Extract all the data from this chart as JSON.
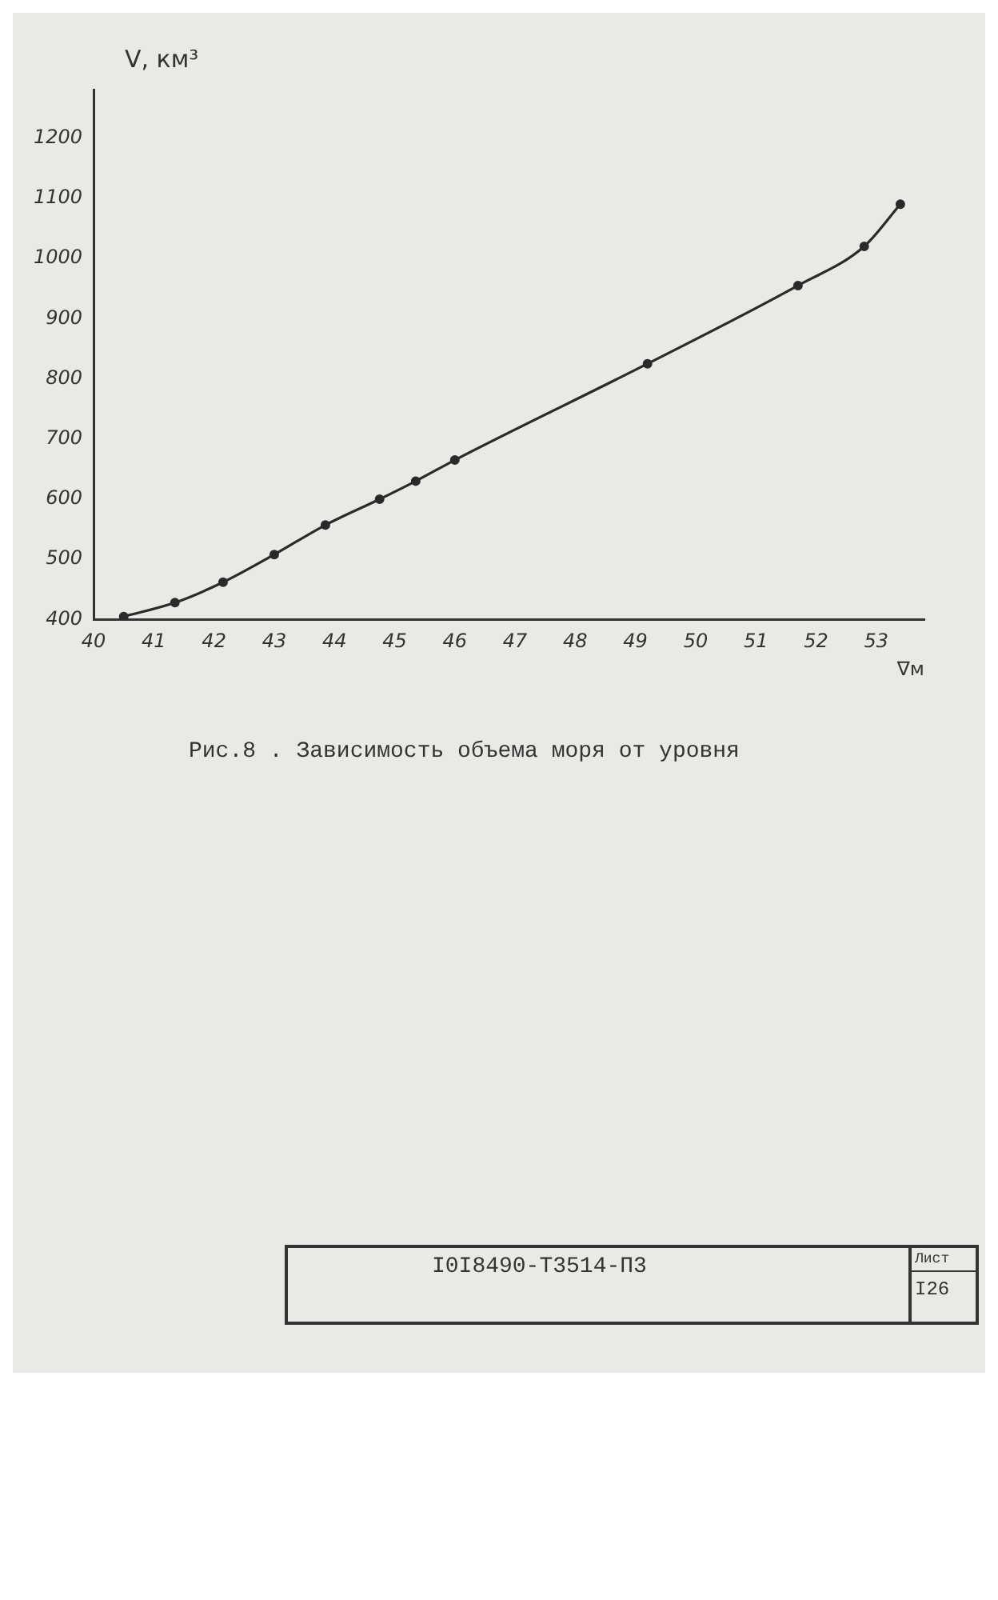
{
  "chart_data": {
    "type": "line",
    "title": "Рис.8 . Зависимость объема моря от уровня",
    "xlabel": "∇м",
    "ylabel": "V, км³",
    "x": [
      40.5,
      41.35,
      42.15,
      43.0,
      43.85,
      44.75,
      45.35,
      46.0,
      49.2,
      51.7,
      52.8,
      53.4
    ],
    "series": [
      {
        "color": "#2a2a2a",
        "values": [
          405,
          428,
          462,
          508,
          557,
          600,
          630,
          665,
          825,
          955,
          1020,
          1090
        ]
      }
    ],
    "xlim": [
      40,
      53.8
    ],
    "xticks": [
      40,
      41,
      42,
      43,
      44,
      45,
      46,
      47,
      48,
      49,
      50,
      51,
      52,
      53
    ],
    "ylim": [
      400,
      1280
    ],
    "yticks": [
      400,
      500,
      600,
      700,
      800,
      900,
      1000,
      1100,
      1200
    ],
    "grid": false,
    "legend": false,
    "marker": "circle",
    "line_style": "solid",
    "annotations": [
      "I0I8490-Т3514-П3",
      "Лист",
      "I26"
    ]
  }
}
